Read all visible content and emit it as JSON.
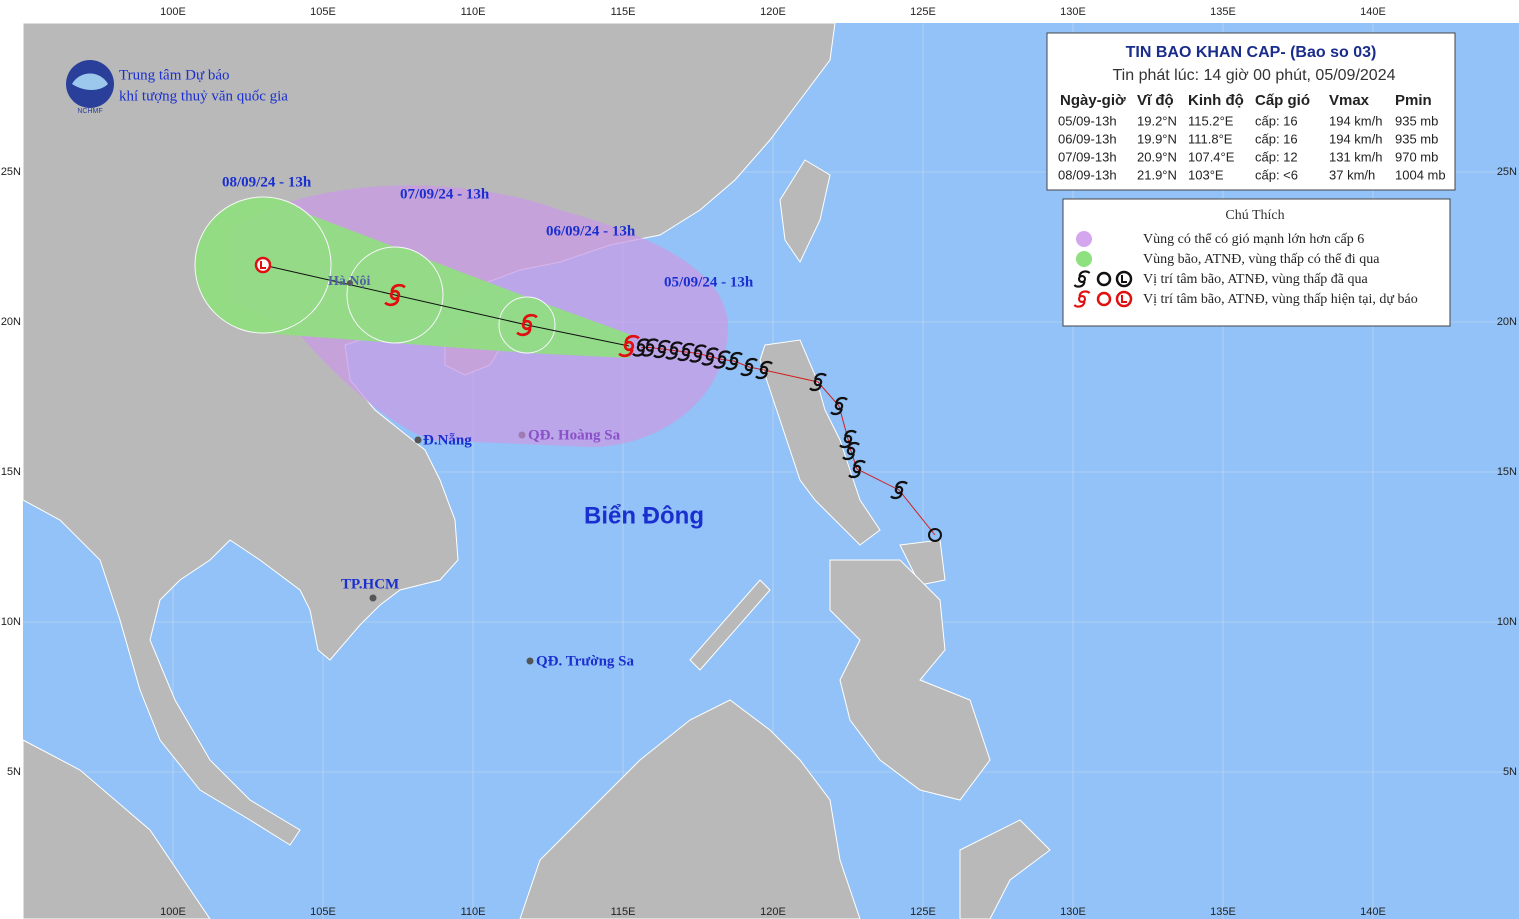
{
  "header": {
    "org_line1": "Trung tâm Dự báo",
    "org_line2": "khí tượng thuỷ văn quốc gia",
    "logo_text": "NCHMF"
  },
  "bulletin": {
    "title": "TIN BAO KHAN CAP- (Bao so 03)",
    "issued": "Tin phát lúc: 14 giờ 00 phút, 05/09/2024",
    "columns": [
      "Ngày-giờ",
      "Vĩ độ",
      "Kinh độ",
      "Cấp gió",
      "Vmax",
      "Pmin"
    ],
    "rows": [
      [
        "05/09-13h",
        "19.2°N",
        "115.2°E",
        "cấp: 16",
        "194 km/h",
        "935 mb"
      ],
      [
        "06/09-13h",
        "19.9°N",
        "111.8°E",
        "cấp: 16",
        "194 km/h",
        "935 mb"
      ],
      [
        "07/09-13h",
        "20.9°N",
        "107.4°E",
        "cấp: 12",
        "131 km/h",
        "970 mb"
      ],
      [
        "08/09-13h",
        "21.9°N",
        "103°E",
        "cấp: <6",
        "37 km/h",
        "1004 mb"
      ]
    ]
  },
  "legend": {
    "title": "Chú Thích",
    "items": [
      "Vùng có thể có gió mạnh lớn hơn cấp 6",
      "Vùng bão, ATNĐ, vùng thấp có thể đi qua",
      "Vị trí tâm bão, ATNĐ, vùng thấp đã qua",
      "Vị trí tâm bão, ATNĐ, vùng thấp hiện tại, dự báo"
    ]
  },
  "map": {
    "lon_ticks": [
      {
        "value": 100,
        "label": "100E"
      },
      {
        "value": 105,
        "label": "105E"
      },
      {
        "value": 110,
        "label": "110E"
      },
      {
        "value": 115,
        "label": "115E"
      },
      {
        "value": 120,
        "label": "120E"
      },
      {
        "value": 125,
        "label": "125E"
      },
      {
        "value": 130,
        "label": "130E"
      },
      {
        "value": 135,
        "label": "135E"
      },
      {
        "value": 140,
        "label": "140E"
      }
    ],
    "lat_ticks": [
      {
        "value": 25,
        "label": "25N"
      },
      {
        "value": 20,
        "label": "20N"
      },
      {
        "value": 15,
        "label": "15N"
      },
      {
        "value": 10,
        "label": "10N"
      },
      {
        "value": 5,
        "label": "5N"
      }
    ],
    "forecast_labels": [
      "05/09/24 - 13h",
      "06/09/24 - 13h",
      "07/09/24 - 13h",
      "08/09/24 - 13h"
    ],
    "places": [
      "Hà Nội",
      "Đ.Nẵng",
      "QĐ. Hoàng Sa",
      "TP.HCM",
      "QĐ. Trường Sa"
    ],
    "sea_label": "Biển Đông",
    "past_track": [
      [
        125.4,
        12.9
      ],
      [
        124.2,
        14.4
      ],
      [
        122.8,
        15.1
      ],
      [
        122.6,
        15.7
      ],
      [
        122.5,
        16.1
      ],
      [
        122.2,
        17.2
      ],
      [
        121.5,
        18.0
      ],
      [
        119.7,
        18.4
      ],
      [
        119.2,
        18.5
      ],
      [
        118.7,
        18.7
      ],
      [
        118.3,
        18.75
      ],
      [
        117.9,
        18.85
      ],
      [
        117.5,
        18.95
      ],
      [
        117.1,
        19.0
      ],
      [
        116.7,
        19.05
      ],
      [
        116.3,
        19.1
      ],
      [
        115.9,
        19.15
      ],
      [
        115.6,
        19.15
      ]
    ]
  }
}
